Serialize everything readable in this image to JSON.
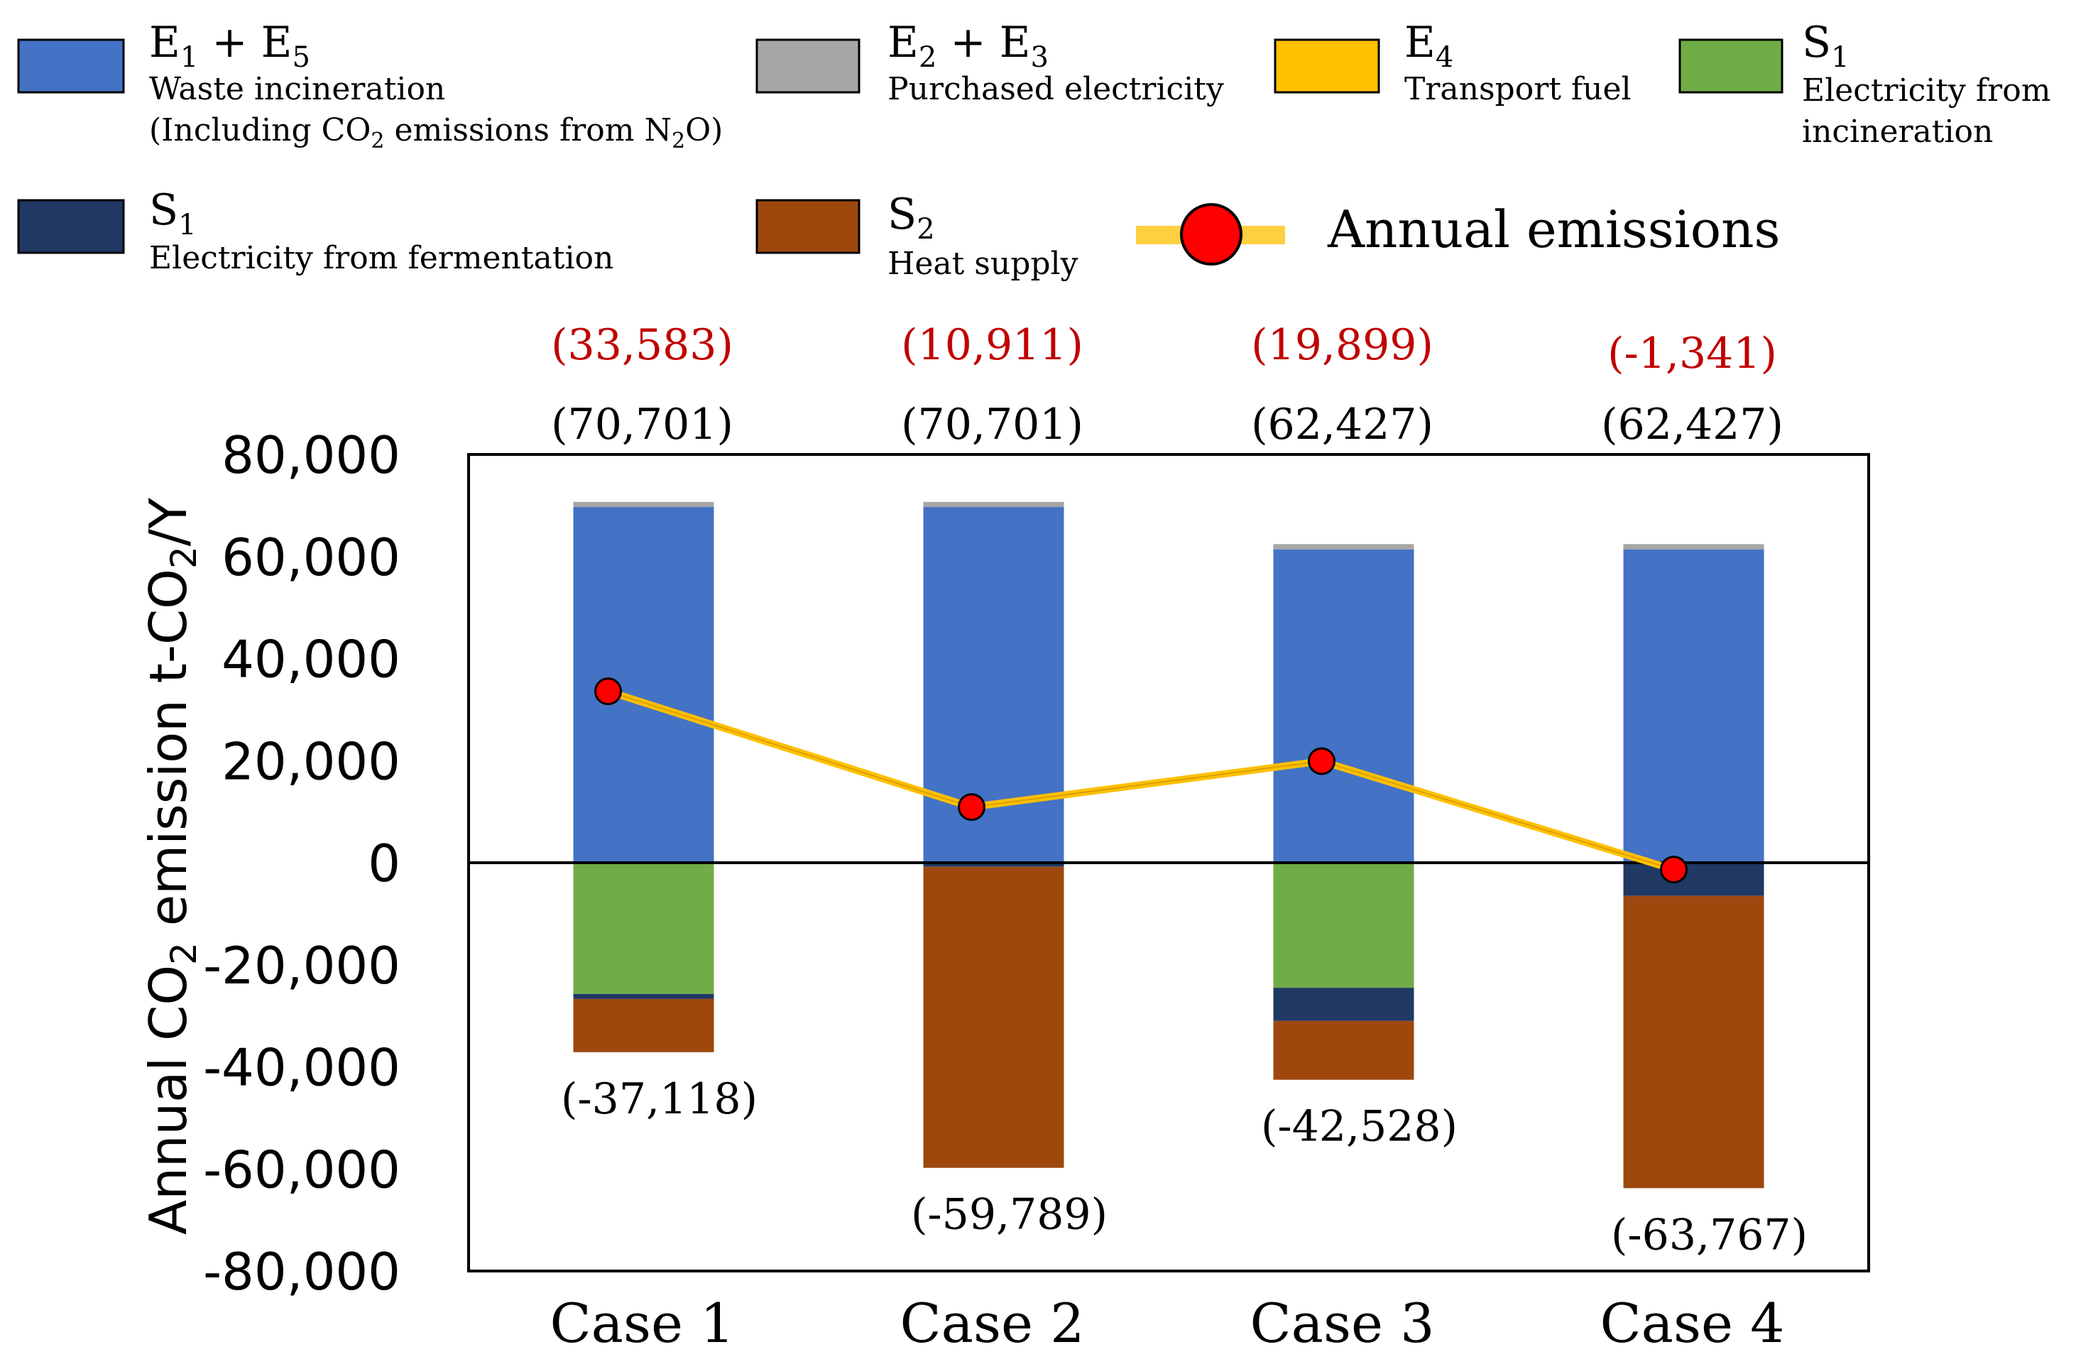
{
  "chart_data": {
    "type": "bar",
    "stacked": true,
    "title": "",
    "xlabel": "",
    "ylabel": {
      "prefix": "Annual CO",
      "sub": "2",
      "suffix": " emission t-CO",
      "sub2": "2",
      "end": "/Y"
    },
    "ylim": [
      -80000,
      80000
    ],
    "yticks": [
      80000,
      60000,
      40000,
      20000,
      0,
      -20000,
      -40000,
      -60000,
      -80000
    ],
    "ytick_labels": [
      "80,000",
      "60,000",
      "40,000",
      "20,000",
      "0",
      "-20,000",
      "-40,000",
      "-60,000",
      "-80,000"
    ],
    "categories": [
      "Case 1",
      "Case 2",
      "Case 3",
      "Case 4"
    ],
    "series": [
      {
        "key": "e15",
        "name": "E1 + E5",
        "values": [
          69700,
          69700,
          61400,
          61400
        ],
        "color": "#4472C4"
      },
      {
        "key": "e23",
        "name": "E2 + E3",
        "values": [
          1001,
          1001,
          1027,
          1027
        ],
        "color": "#A6A6A6"
      },
      {
        "key": "e4",
        "name": "E4",
        "values": [
          0,
          0,
          0,
          0
        ],
        "color": "#FFC000"
      },
      {
        "key": "s1inc",
        "name": "S1 Electricity from incineration",
        "values": [
          -25700,
          0,
          -24500,
          0
        ],
        "color": "#70AD47"
      },
      {
        "key": "s1fer",
        "name": "S1 Electricity from fermentation",
        "values": [
          -1000,
          -800,
          -6500,
          -6500
        ],
        "color": "#203864"
      },
      {
        "key": "s2",
        "name": "S2 Heat supply",
        "values": [
          -10418,
          -58989,
          -11528,
          -57267
        ],
        "color": "#9E480E"
      }
    ],
    "annual_emissions": {
      "name": "Annual emissions",
      "values": [
        33583,
        10911,
        19899,
        -1341
      ],
      "line_color": "#FFC000",
      "marker_color": "#FF0000"
    },
    "top_labels_red": [
      "(33,583)",
      "(10,911)",
      "(19,899)",
      "(-1,341)"
    ],
    "top_labels_black": [
      "(70,701)",
      "(70,701)",
      "(62,427)",
      "(62,427)"
    ],
    "bottom_labels": [
      "(-37,118)",
      "(-59,789)",
      "(-42,528)",
      "(-63,767)"
    ],
    "legend": {
      "placement": "top",
      "items": [
        {
          "key": "e15",
          "title_main": "E",
          "title_sub": "1",
          "title_plus": " + E",
          "title_sub2": "5",
          "desc": "Waste incineration",
          "desc2_a": "(Including CO",
          "desc2_sub": "2",
          "desc2_b": " emissions from N",
          "desc2_sub2": "2",
          "desc2_c": "O)",
          "color": "#4472C4"
        },
        {
          "key": "e23",
          "title_main": "E",
          "title_sub": "2",
          "title_plus": " + E",
          "title_sub2": "3",
          "desc": "Purchased electricity",
          "color": "#A6A6A6"
        },
        {
          "key": "e4",
          "title_main": "E",
          "title_sub": "4",
          "desc": "Transport fuel",
          "color": "#FFC000"
        },
        {
          "key": "s1inc",
          "title_main": "S",
          "title_sub": "1",
          "desc": "Electricity from",
          "desc_line2": "incineration",
          "color": "#70AD47"
        },
        {
          "key": "s1fer",
          "title_main": "S",
          "title_sub": "1",
          "desc": "Electricity from fermentation",
          "color": "#203864"
        },
        {
          "key": "s2",
          "title_main": "S",
          "title_sub": "2",
          "desc": "Heat supply",
          "color": "#9E480E"
        },
        {
          "key": "annual",
          "label": "Annual emissions"
        }
      ]
    }
  }
}
